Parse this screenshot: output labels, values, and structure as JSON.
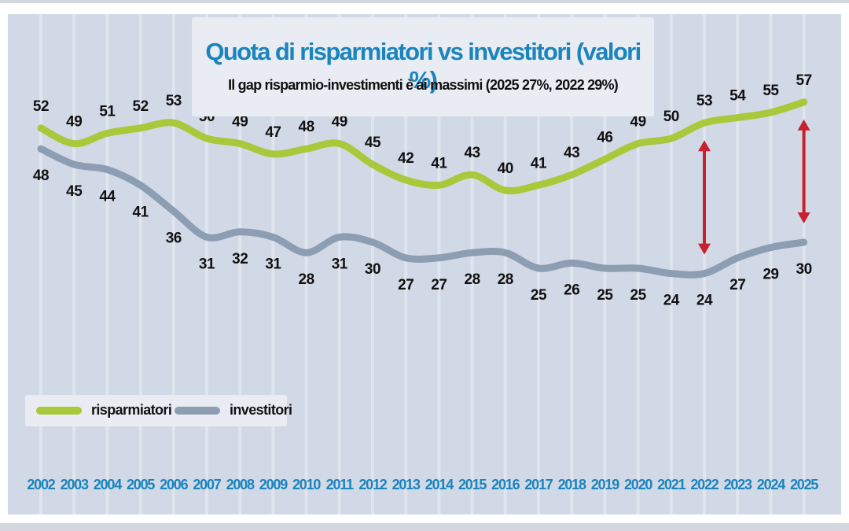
{
  "header": {
    "title": "Quota di risparmiatori vs investitori (valori %)",
    "subtitle": "Il gap risparmio-investimenti è ai massimi (2025 27%, 2022 29%)"
  },
  "legend": {
    "items": [
      {
        "label": "risparmiatori",
        "color": "#a7c93a"
      },
      {
        "label": "investitori",
        "color": "#8d9db2"
      }
    ]
  },
  "chart_data": {
    "type": "line",
    "title": "Quota di risparmiatori vs investitori (valori %)",
    "subtitle": "Il gap risparmio-investimenti è ai massimi (2025 27%, 2022 29%)",
    "xlabel": "",
    "ylabel": "",
    "categories": [
      "2002",
      "2003",
      "2004",
      "2005",
      "2006",
      "2007",
      "2008",
      "2009",
      "2010",
      "2011",
      "2012",
      "2013",
      "2014",
      "2015",
      "2016",
      "2017",
      "2018",
      "2019",
      "2020",
      "2021",
      "2022",
      "2023",
      "2024",
      "2025"
    ],
    "series": [
      {
        "name": "risparmiatori",
        "color": "#a7c93a",
        "values": [
          52,
          49,
          51,
          52,
          53,
          50,
          49,
          47,
          48,
          49,
          45,
          42,
          41,
          43,
          40,
          41,
          43,
          46,
          49,
          50,
          53,
          54,
          55,
          57
        ]
      },
      {
        "name": "investitori",
        "color": "#8d9db2",
        "values": [
          48,
          45,
          44,
          41,
          36,
          31,
          32,
          31,
          28,
          31,
          30,
          27,
          27,
          28,
          28,
          25,
          26,
          25,
          25,
          24,
          24,
          27,
          29,
          30
        ]
      }
    ],
    "ylim": [
      20,
      60
    ],
    "grid": "vertical",
    "legend_position": "bottom-left",
    "gap_arrows": [
      {
        "year": "2022",
        "color": "#c8202c"
      },
      {
        "year": "2025",
        "color": "#c8202c"
      }
    ],
    "axis_label_color": "#1a84bd",
    "value_label_color": "#111111"
  }
}
